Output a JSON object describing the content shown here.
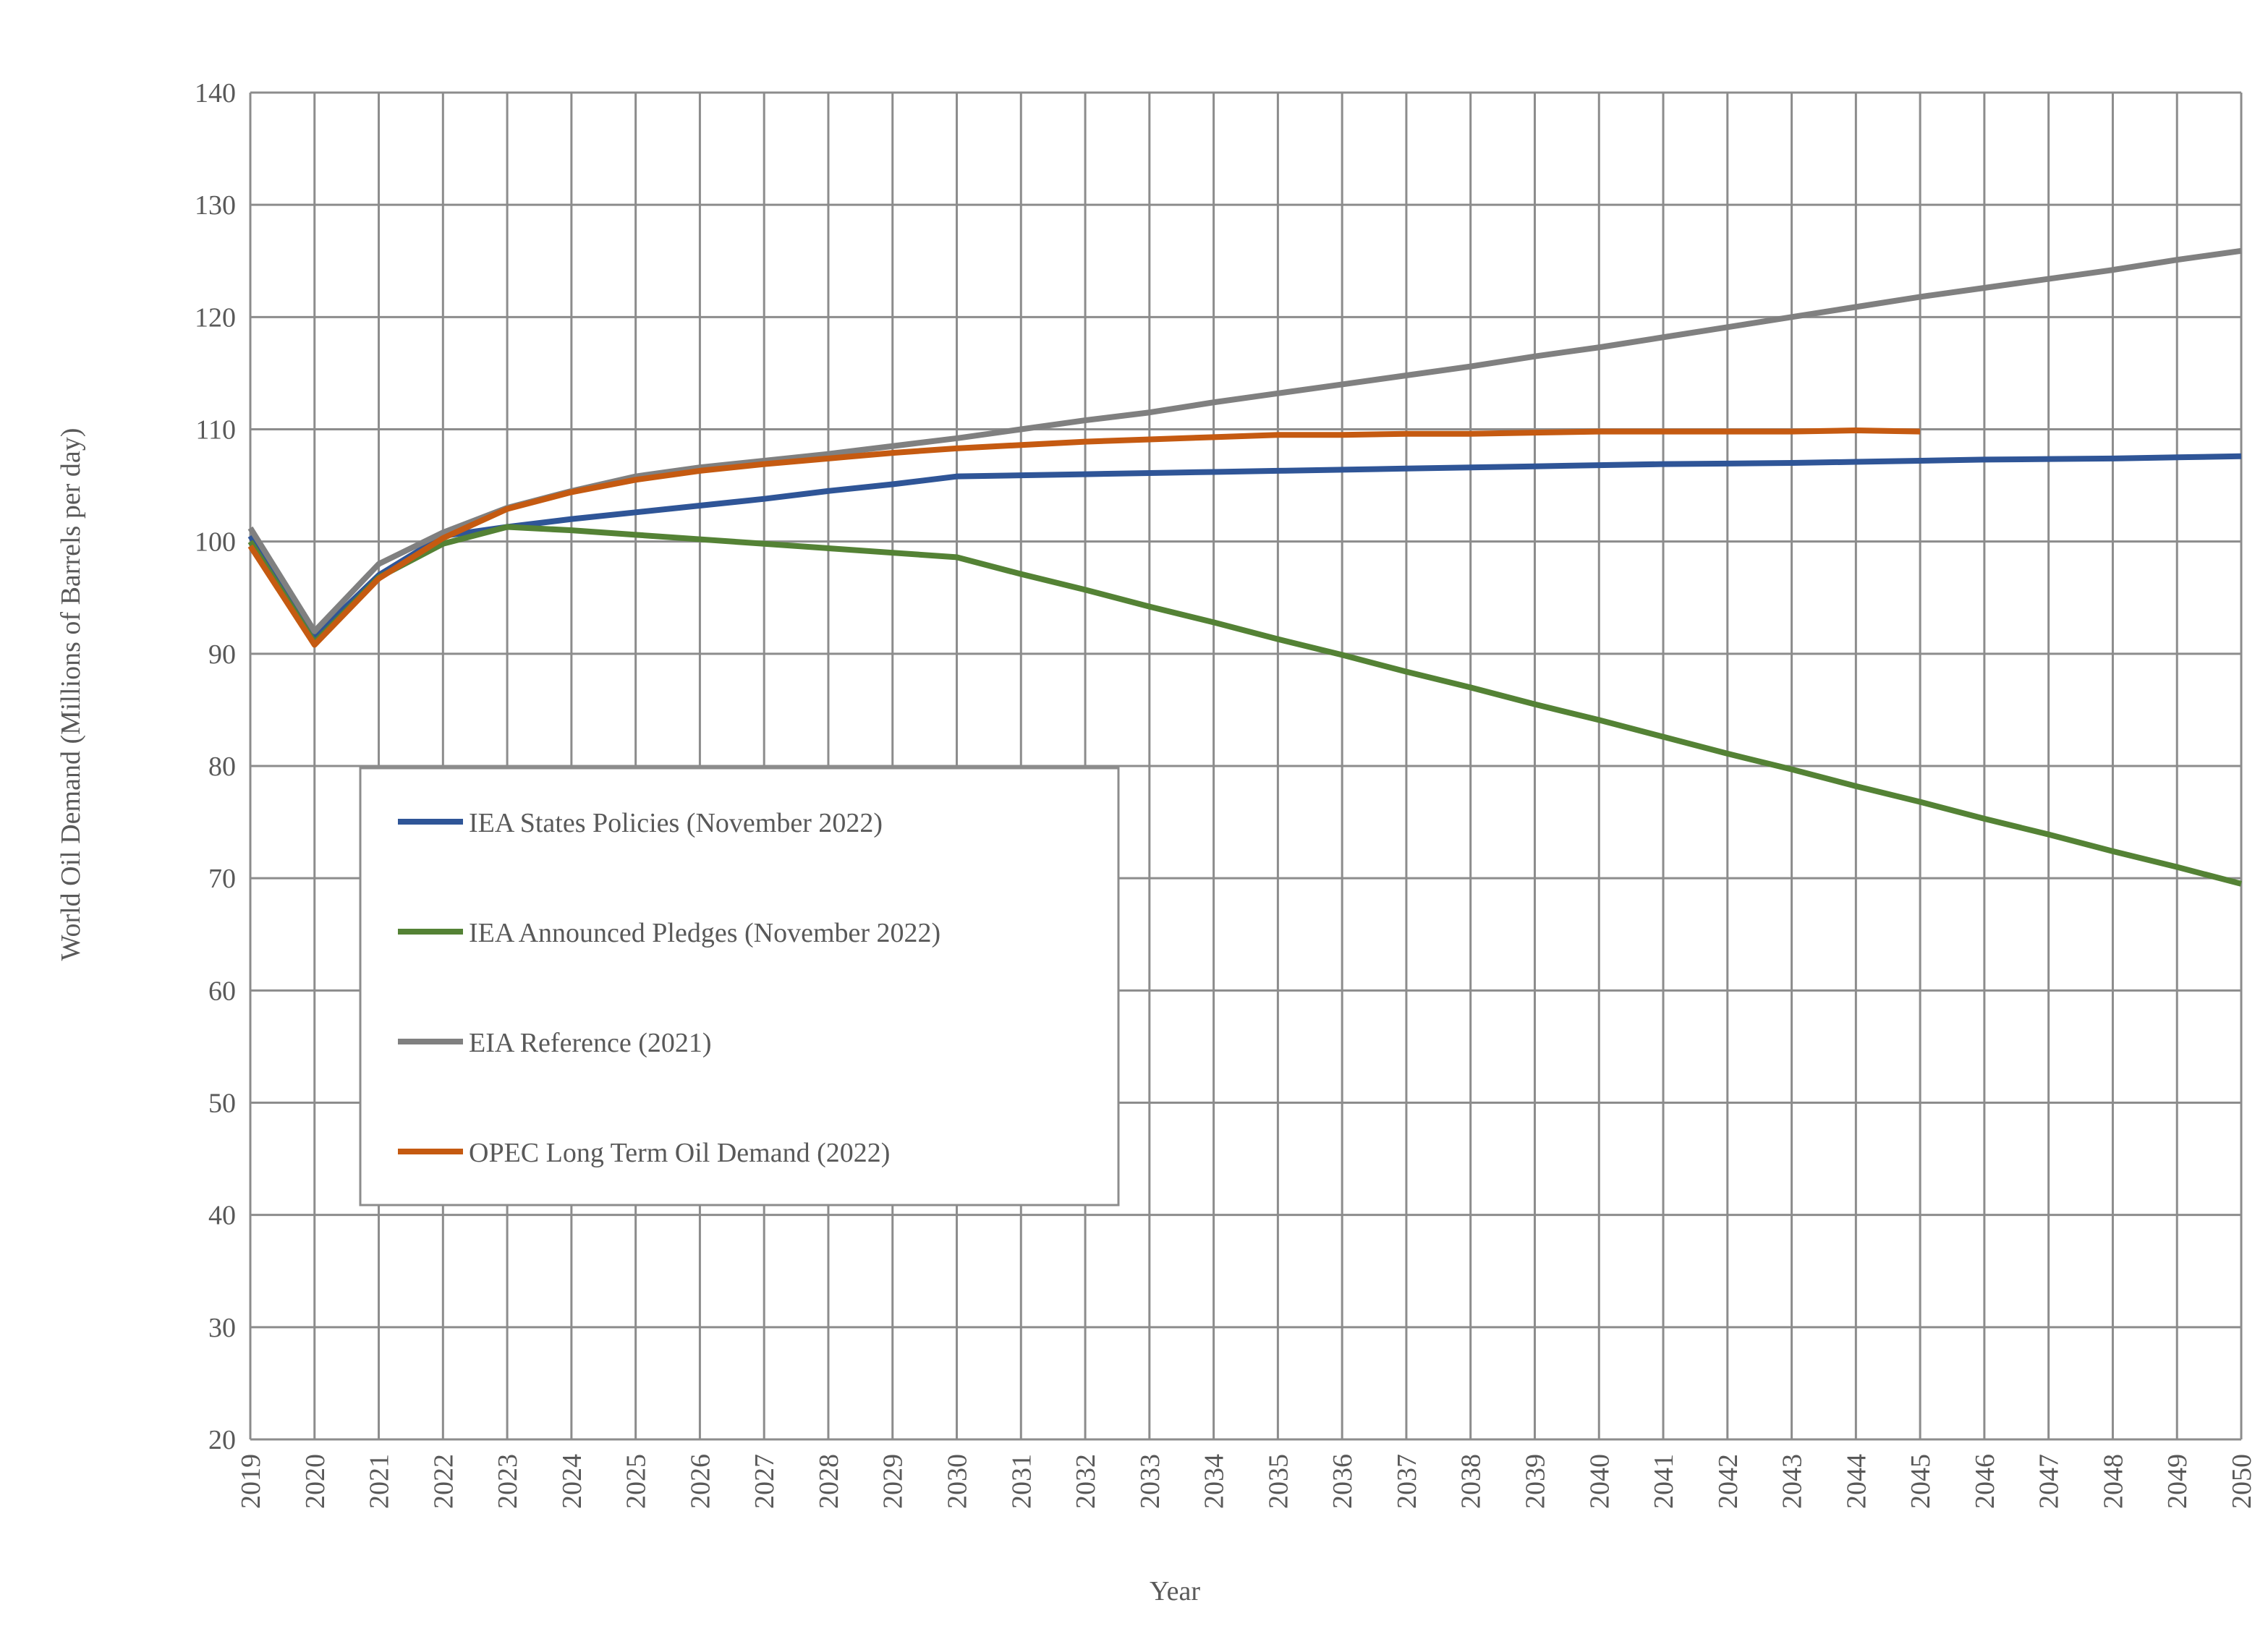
{
  "chart_data": {
    "type": "line",
    "x_label": "Year",
    "y_label": "World Oil Demand (Millions of Barrels per day)",
    "x": [
      2019,
      2020,
      2021,
      2022,
      2023,
      2024,
      2025,
      2026,
      2027,
      2028,
      2029,
      2030,
      2031,
      2032,
      2033,
      2034,
      2035,
      2036,
      2037,
      2038,
      2039,
      2040,
      2041,
      2042,
      2043,
      2044,
      2045,
      2046,
      2047,
      2048,
      2049,
      2050
    ],
    "xlim": [
      2019,
      2050
    ],
    "xticks": [
      2019,
      2020,
      2021,
      2022,
      2023,
      2024,
      2025,
      2026,
      2027,
      2028,
      2029,
      2030,
      2031,
      2032,
      2033,
      2034,
      2035,
      2036,
      2037,
      2038,
      2039,
      2040,
      2041,
      2042,
      2043,
      2044,
      2045,
      2046,
      2047,
      2048,
      2049,
      2050
    ],
    "ylim": [
      20,
      140
    ],
    "yticks": [
      20,
      30,
      40,
      50,
      60,
      70,
      80,
      90,
      100,
      110,
      120,
      130,
      140
    ],
    "grid": true,
    "series": [
      {
        "name": "IEA States Policies (November 2022)",
        "color": "#2f5597",
        "values": [
          100.5,
          91.5,
          97,
          100.5,
          101.3,
          102,
          102.6,
          103.2,
          103.8,
          104.5,
          105.1,
          105.8,
          105.9,
          106,
          106.1,
          106.2,
          106.3,
          106.4,
          106.5,
          106.6,
          106.7,
          106.8,
          106.9,
          106.95,
          107,
          107.1,
          107.2,
          107.3,
          107.35,
          107.4,
          107.5,
          107.6
        ]
      },
      {
        "name": "IEA Announced Pledges (November 2022)",
        "color": "#548235",
        "values": [
          100,
          91,
          96.8,
          99.8,
          101.3,
          101,
          100.6,
          100.2,
          99.8,
          99.4,
          99,
          98.6,
          97.1,
          95.7,
          94.2,
          92.8,
          91.3,
          89.9,
          88.4,
          87,
          85.5,
          84.1,
          82.6,
          81.1,
          79.7,
          78.2,
          76.8,
          75.3,
          73.9,
          72.4,
          71,
          69.5
        ]
      },
      {
        "name": "EIA Reference (2021)",
        "color": "#808080",
        "values": [
          101.2,
          92,
          98,
          100.8,
          103,
          104.5,
          105.8,
          106.6,
          107.2,
          107.8,
          108.5,
          109.2,
          110,
          110.8,
          111.5,
          112.4,
          113.2,
          114,
          114.8,
          115.6,
          116.5,
          117.3,
          118.2,
          119.1,
          120,
          120.9,
          121.8,
          122.6,
          123.4,
          124.2,
          125.1,
          125.9
        ]
      },
      {
        "name": "OPEC Long Term Oil Demand (2022)",
        "color": "#c55a11",
        "values": [
          99.6,
          90.8,
          96.7,
          100.3,
          102.9,
          104.4,
          105.5,
          106.3,
          106.9,
          107.4,
          107.9,
          108.3,
          108.6,
          108.9,
          109.1,
          109.3,
          109.5,
          109.5,
          109.6,
          109.6,
          109.7,
          109.8,
          109.8,
          109.8,
          109.8,
          109.9,
          109.8,
          null,
          null,
          null,
          null,
          null
        ]
      }
    ]
  }
}
